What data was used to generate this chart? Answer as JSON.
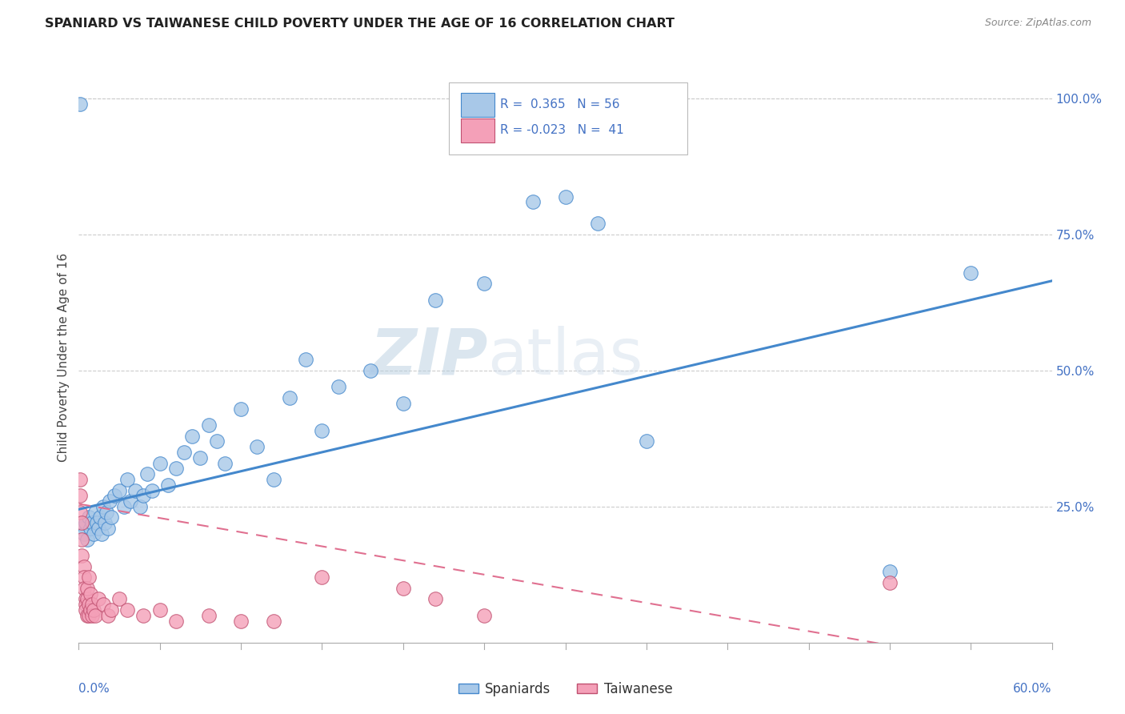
{
  "title": "SPANIARD VS TAIWANESE CHILD POVERTY UNDER THE AGE OF 16 CORRELATION CHART",
  "source": "Source: ZipAtlas.com",
  "ylabel": "Child Poverty Under the Age of 16",
  "xmin": 0.0,
  "xmax": 0.6,
  "ymin": 0.0,
  "ymax": 1.05,
  "spaniard_color": "#a8c8e8",
  "taiwanese_color": "#f4a0b8",
  "trendline_spaniard_color": "#4488cc",
  "trendline_taiwanese_color": "#e07090",
  "background_color": "#ffffff",
  "watermark": "ZIPatlas",
  "spaniard_points": [
    [
      0.001,
      0.99
    ],
    [
      0.002,
      0.21
    ],
    [
      0.003,
      0.2
    ],
    [
      0.004,
      0.22
    ],
    [
      0.005,
      0.19
    ],
    [
      0.006,
      0.23
    ],
    [
      0.007,
      0.21
    ],
    [
      0.008,
      0.22
    ],
    [
      0.009,
      0.2
    ],
    [
      0.01,
      0.24
    ],
    [
      0.011,
      0.22
    ],
    [
      0.012,
      0.21
    ],
    [
      0.013,
      0.23
    ],
    [
      0.014,
      0.2
    ],
    [
      0.015,
      0.25
    ],
    [
      0.016,
      0.22
    ],
    [
      0.017,
      0.24
    ],
    [
      0.018,
      0.21
    ],
    [
      0.019,
      0.26
    ],
    [
      0.02,
      0.23
    ],
    [
      0.022,
      0.27
    ],
    [
      0.025,
      0.28
    ],
    [
      0.028,
      0.25
    ],
    [
      0.03,
      0.3
    ],
    [
      0.032,
      0.26
    ],
    [
      0.035,
      0.28
    ],
    [
      0.038,
      0.25
    ],
    [
      0.04,
      0.27
    ],
    [
      0.042,
      0.31
    ],
    [
      0.045,
      0.28
    ],
    [
      0.05,
      0.33
    ],
    [
      0.055,
      0.29
    ],
    [
      0.06,
      0.32
    ],
    [
      0.065,
      0.35
    ],
    [
      0.07,
      0.38
    ],
    [
      0.075,
      0.34
    ],
    [
      0.08,
      0.4
    ],
    [
      0.085,
      0.37
    ],
    [
      0.09,
      0.33
    ],
    [
      0.1,
      0.43
    ],
    [
      0.11,
      0.36
    ],
    [
      0.12,
      0.3
    ],
    [
      0.13,
      0.45
    ],
    [
      0.14,
      0.52
    ],
    [
      0.15,
      0.39
    ],
    [
      0.16,
      0.47
    ],
    [
      0.18,
      0.5
    ],
    [
      0.2,
      0.44
    ],
    [
      0.22,
      0.63
    ],
    [
      0.25,
      0.66
    ],
    [
      0.28,
      0.81
    ],
    [
      0.3,
      0.82
    ],
    [
      0.32,
      0.77
    ],
    [
      0.35,
      0.37
    ],
    [
      0.5,
      0.13
    ],
    [
      0.55,
      0.68
    ]
  ],
  "taiwanese_points": [
    [
      0.001,
      0.3
    ],
    [
      0.001,
      0.27
    ],
    [
      0.001,
      0.24
    ],
    [
      0.002,
      0.22
    ],
    [
      0.002,
      0.19
    ],
    [
      0.002,
      0.16
    ],
    [
      0.003,
      0.14
    ],
    [
      0.003,
      0.12
    ],
    [
      0.003,
      0.1
    ],
    [
      0.004,
      0.08
    ],
    [
      0.004,
      0.07
    ],
    [
      0.004,
      0.06
    ],
    [
      0.005,
      0.05
    ],
    [
      0.005,
      0.08
    ],
    [
      0.005,
      0.1
    ],
    [
      0.006,
      0.12
    ],
    [
      0.006,
      0.07
    ],
    [
      0.006,
      0.05
    ],
    [
      0.007,
      0.09
    ],
    [
      0.007,
      0.06
    ],
    [
      0.008,
      0.07
    ],
    [
      0.008,
      0.05
    ],
    [
      0.009,
      0.06
    ],
    [
      0.01,
      0.05
    ],
    [
      0.012,
      0.08
    ],
    [
      0.015,
      0.07
    ],
    [
      0.018,
      0.05
    ],
    [
      0.02,
      0.06
    ],
    [
      0.025,
      0.08
    ],
    [
      0.03,
      0.06
    ],
    [
      0.04,
      0.05
    ],
    [
      0.05,
      0.06
    ],
    [
      0.06,
      0.04
    ],
    [
      0.08,
      0.05
    ],
    [
      0.1,
      0.04
    ],
    [
      0.12,
      0.04
    ],
    [
      0.15,
      0.12
    ],
    [
      0.2,
      0.1
    ],
    [
      0.22,
      0.08
    ],
    [
      0.25,
      0.05
    ],
    [
      0.5,
      0.11
    ]
  ]
}
